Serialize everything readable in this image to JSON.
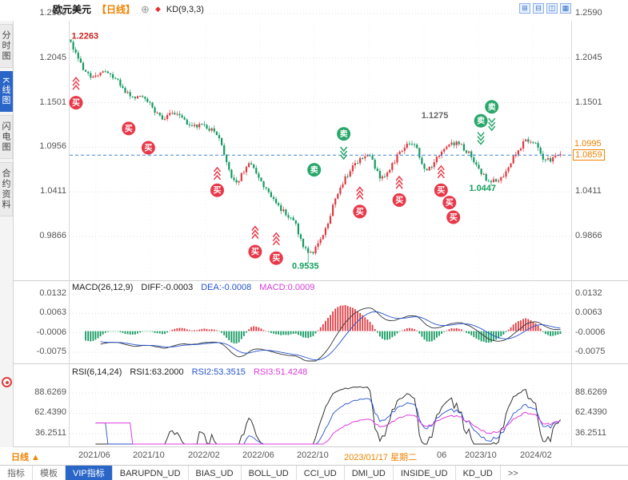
{
  "header": {
    "symbol": "欧元美元",
    "period": "【日线】",
    "plus_icon": "⊕",
    "diamond_icon": "◆",
    "indicator": "KD(9,3,3)"
  },
  "top_icons": [
    "⊞",
    "⊟",
    "◫",
    "▦"
  ],
  "sidebar": {
    "items": [
      {
        "label": "分时图",
        "active": false
      },
      {
        "label": "K线图",
        "active": true
      },
      {
        "label": "闪电图",
        "active": false
      },
      {
        "label": "合约资料",
        "active": false
      }
    ]
  },
  "price_axis": {
    "left": [
      "1.2590",
      "1.2045",
      "1.1501",
      "1.0956",
      "1.0411",
      "0.9866"
    ],
    "right": [
      "1.2590",
      "1.2045",
      "1.1501",
      "1.0411",
      "0.9866"
    ],
    "highlights": [
      {
        "value": "1.0995",
        "boxed": false
      },
      {
        "value": "1.0859",
        "boxed": true
      }
    ]
  },
  "macd": {
    "title": "MACD(26,12,9)",
    "diff": "DIFF:-0.0003",
    "dea": "DEA:-0.0008",
    "macd": "MACD:0.0009",
    "axis": [
      "0.0132",
      "0.0063",
      "-0.0006",
      "-0.0075"
    ]
  },
  "rsi": {
    "title": "RSI(6,14,24)",
    "rsi1": "RSI1:63.2000",
    "rsi2": "RSI2:53.3515",
    "rsi3": "RSI3:51.4248",
    "axis": [
      "88.6269",
      "62.4390",
      "36.2511"
    ]
  },
  "time_axis": {
    "period": "日线 ▲",
    "labels": [
      "2021/06",
      "2021/10",
      "2022/02",
      "2022/06",
      "2022/10",
      "2023/01/17 星期二",
      "06",
      "2023/10",
      "2024/02"
    ]
  },
  "tabs": {
    "items": [
      "指标",
      "模板",
      "VIP指标",
      "BARUPDN_UD",
      "BIAS_UD",
      "BOLL_UD",
      "CCI_UD",
      "DMI_UD",
      "INSIDE_UD",
      "KD_UD",
      ">>"
    ],
    "active": "VIP指标"
  },
  "annotations": [
    {
      "text": "1.2263",
      "f": 0.004,
      "price": 1.231,
      "color": "#cc2222"
    },
    {
      "text": "1.1275",
      "f": 0.715,
      "price": 1.134,
      "color": "#666666"
    },
    {
      "text": "1.0447",
      "f": 0.812,
      "price": 1.045,
      "color": "#14a05e"
    },
    {
      "text": "0.9535",
      "f": 0.452,
      "price": 0.95,
      "color": "#14a05e"
    }
  ],
  "signals": {
    "buy_label": "买",
    "sell_label": "卖",
    "buy_color": "#e8394a",
    "sell_color": "#2aa76a",
    "markers": [
      {
        "type": "buy",
        "f": 0.013,
        "price": 1.15
      },
      {
        "type": "buy",
        "f": 0.12,
        "price": 1.1185
      },
      {
        "type": "buy",
        "f": 0.16,
        "price": 1.095
      },
      {
        "type": "buy",
        "f": 0.3,
        "price": 1.043
      },
      {
        "type": "buy",
        "f": 0.377,
        "price": 0.968
      },
      {
        "type": "buy",
        "f": 0.42,
        "price": 0.96
      },
      {
        "type": "buy",
        "f": 0.59,
        "price": 1.017
      },
      {
        "type": "buy",
        "f": 0.67,
        "price": 1.031
      },
      {
        "type": "buy",
        "f": 0.755,
        "price": 1.043
      },
      {
        "type": "buy",
        "f": 0.772,
        "price": 1.028
      },
      {
        "type": "buy",
        "f": 0.78,
        "price": 1.01
      },
      {
        "type": "sell",
        "f": 0.497,
        "price": 1.068
      },
      {
        "type": "sell",
        "f": 0.557,
        "price": 1.112
      },
      {
        "type": "sell",
        "f": 0.836,
        "price": 1.128
      },
      {
        "type": "sell",
        "f": 0.858,
        "price": 1.145
      }
    ],
    "chevrons": [
      {
        "f": 0.013,
        "price": 1.168,
        "dir": "up"
      },
      {
        "f": 0.3,
        "price": 1.058,
        "dir": "up"
      },
      {
        "f": 0.377,
        "price": 0.986,
        "dir": "up"
      },
      {
        "f": 0.42,
        "price": 0.978,
        "dir": "up"
      },
      {
        "f": 0.59,
        "price": 1.034,
        "dir": "up"
      },
      {
        "f": 0.67,
        "price": 1.047,
        "dir": "up"
      },
      {
        "f": 0.755,
        "price": 1.06,
        "dir": "up"
      },
      {
        "f": 0.557,
        "price": 1.094,
        "dir": "down"
      },
      {
        "f": 0.836,
        "price": 1.112,
        "dir": "down"
      },
      {
        "f": 0.858,
        "price": 1.129,
        "dir": "down"
      }
    ]
  },
  "chart_data": {
    "type": "candlestick",
    "title": "欧元美元 日线 (EUR/USD daily)",
    "start_month": "2021/05",
    "end_month": "2024/02",
    "monthly_close_anchors": [
      1.222,
      1.1855,
      1.1865,
      1.18,
      1.1575,
      1.1555,
      1.133,
      1.137,
      1.123,
      1.1215,
      1.1065,
      1.0545,
      1.0735,
      1.048,
      1.022,
      1.0055,
      0.966,
      0.988,
      1.0405,
      1.0705,
      1.086,
      1.0575,
      1.084,
      1.1015,
      1.069,
      1.091,
      1.1,
      1.084,
      1.057,
      1.0575,
      1.089,
      1.104,
      1.08,
      1.0859
    ],
    "high_extreme": 1.2263,
    "low_extreme": 0.9535,
    "last_price": 1.0859,
    "reference_price": 1.0995,
    "price_axis_ticks": [
      1.259,
      1.2045,
      1.1501,
      1.0956,
      1.0411,
      0.9866
    ],
    "macd_axis_ticks": [
      0.0132,
      0.0063,
      -0.0006,
      -0.0075
    ],
    "rsi_axis_ticks": [
      88.6269,
      62.439,
      36.2511
    ],
    "candles_per_month": 6,
    "seed": 20240217,
    "up_color": "#de3a41",
    "down_color": "#149a62"
  }
}
